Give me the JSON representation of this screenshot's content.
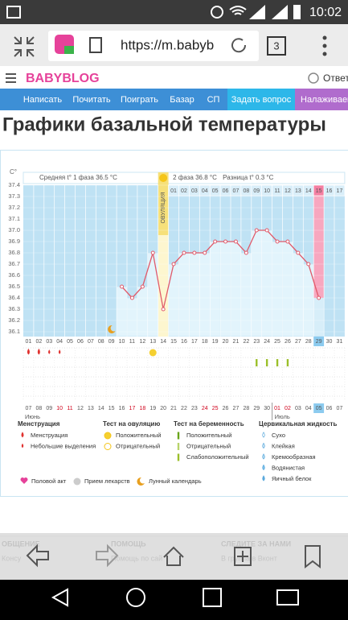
{
  "status_bar": {
    "time": "10:02"
  },
  "browser": {
    "url": "https://m.babyb",
    "tab_count": "3"
  },
  "site": {
    "logo": "BABYBLOG",
    "reply": "Ответь",
    "nav": [
      "Написать",
      "Почитать",
      "Поиграть",
      "Базар",
      "СП",
      "Задать вопрос",
      "Налаживаем"
    ]
  },
  "page_title": "Графики базальной температуры",
  "chart_data": {
    "type": "line",
    "y_unit": "C°",
    "phase1_label": "Средняя t° 1 фаза 36.5 °C",
    "ovulation_label": "ОВУЛЯЦИЯ",
    "phase2_label": "2 фаза 36.8 °C",
    "difference_label": "Разница t° 0.3 °C",
    "categories": [
      "01",
      "02",
      "03",
      "04",
      "05",
      "06",
      "07",
      "08",
      "09",
      "10",
      "11",
      "12",
      "13",
      "14",
      "15",
      "16",
      "17",
      "18",
      "19",
      "20",
      "21",
      "22",
      "23",
      "24",
      "25",
      "26",
      "27",
      "28",
      "29",
      "30",
      "31"
    ],
    "top_labels": [
      null,
      null,
      null,
      null,
      null,
      null,
      null,
      null,
      null,
      null,
      null,
      null,
      null,
      null,
      "01",
      "02",
      "03",
      "04",
      "05",
      "06",
      "07",
      "08",
      "09",
      "10",
      "11",
      "12",
      "13",
      "14",
      "15",
      "16",
      "17"
    ],
    "dates": [
      "07",
      "08",
      "09",
      "10",
      "11",
      "12",
      "13",
      "14",
      "15",
      "16",
      "17",
      "18",
      "19",
      "20",
      "21",
      "22",
      "23",
      "24",
      "25",
      "26",
      "27",
      "28",
      "29",
      "30",
      "01",
      "02",
      "03",
      "04",
      "05",
      "06",
      "07"
    ],
    "date_colors": [
      "#555",
      "#555",
      "#555",
      "#d0021b",
      "#d0021b",
      "#555",
      "#555",
      "#555",
      "#555",
      "#555",
      "#d0021b",
      "#d0021b",
      "#555",
      "#555",
      "#555",
      "#555",
      "#555",
      "#d0021b",
      "#d0021b",
      "#555",
      "#555",
      "#555",
      "#555",
      "#555",
      "#d0021b",
      "#d0021b",
      "#555",
      "#555",
      "#555",
      "#555",
      "#555"
    ],
    "months": [
      "Июнь",
      "Июль"
    ],
    "values": [
      null,
      null,
      null,
      null,
      null,
      null,
      null,
      null,
      null,
      36.5,
      36.4,
      36.5,
      36.8,
      36.3,
      36.7,
      36.8,
      36.8,
      36.8,
      36.9,
      36.9,
      36.9,
      36.8,
      37.0,
      37.0,
      36.9,
      36.9,
      36.8,
      36.7,
      36.4,
      null,
      null
    ],
    "color": "#e05a6a",
    "ylim": [
      36.1,
      37.4
    ],
    "yticks": [
      36.1,
      36.2,
      36.3,
      36.4,
      36.5,
      36.6,
      36.7,
      36.8,
      36.9,
      {
        "value": 37,
        "label": "37.0"
      },
      37.1,
      37.2,
      37.3,
      37.4
    ],
    "ovulation_day": "14",
    "highlight_day": "29",
    "menstruation_days": [
      "01",
      "02"
    ],
    "spotting_days": [
      "03",
      "04"
    ],
    "ovulation_test_positive_days": [
      "13"
    ],
    "pregnancy_test_weak_days": [
      "23",
      "24",
      "25",
      "26"
    ],
    "moon_days": [
      "09"
    ]
  },
  "legend": {
    "groups": [
      {
        "title": "Менструация",
        "items": [
          "Менструация",
          "Небольшие выделения"
        ]
      },
      {
        "title": "Тест на овуляцию",
        "items": [
          "Положительный",
          "Отрицательный"
        ]
      },
      {
        "title": "Тест на беременность",
        "items": [
          "Положительный",
          "Отрицательный",
          "Слабоположительный"
        ]
      },
      {
        "title": "Цервикальная жидкость",
        "items": [
          "Сухо",
          "Клейкая",
          "Кремообразная",
          "Водянистая",
          "Яичный белок"
        ]
      }
    ],
    "extras": [
      "Половой акт",
      "Прием лекарств",
      "Лунный календарь"
    ]
  },
  "footer": {
    "columns": [
      {
        "title": "ОБЩЕНИЕ",
        "link": "Консу"
      },
      {
        "title": "ПОМОЩЬ",
        "link": "Помощь по сай"
      },
      {
        "title": "СЛЕДИТЕ ЗА НАМИ",
        "link": "В    группа в Вконт"
      }
    ]
  }
}
